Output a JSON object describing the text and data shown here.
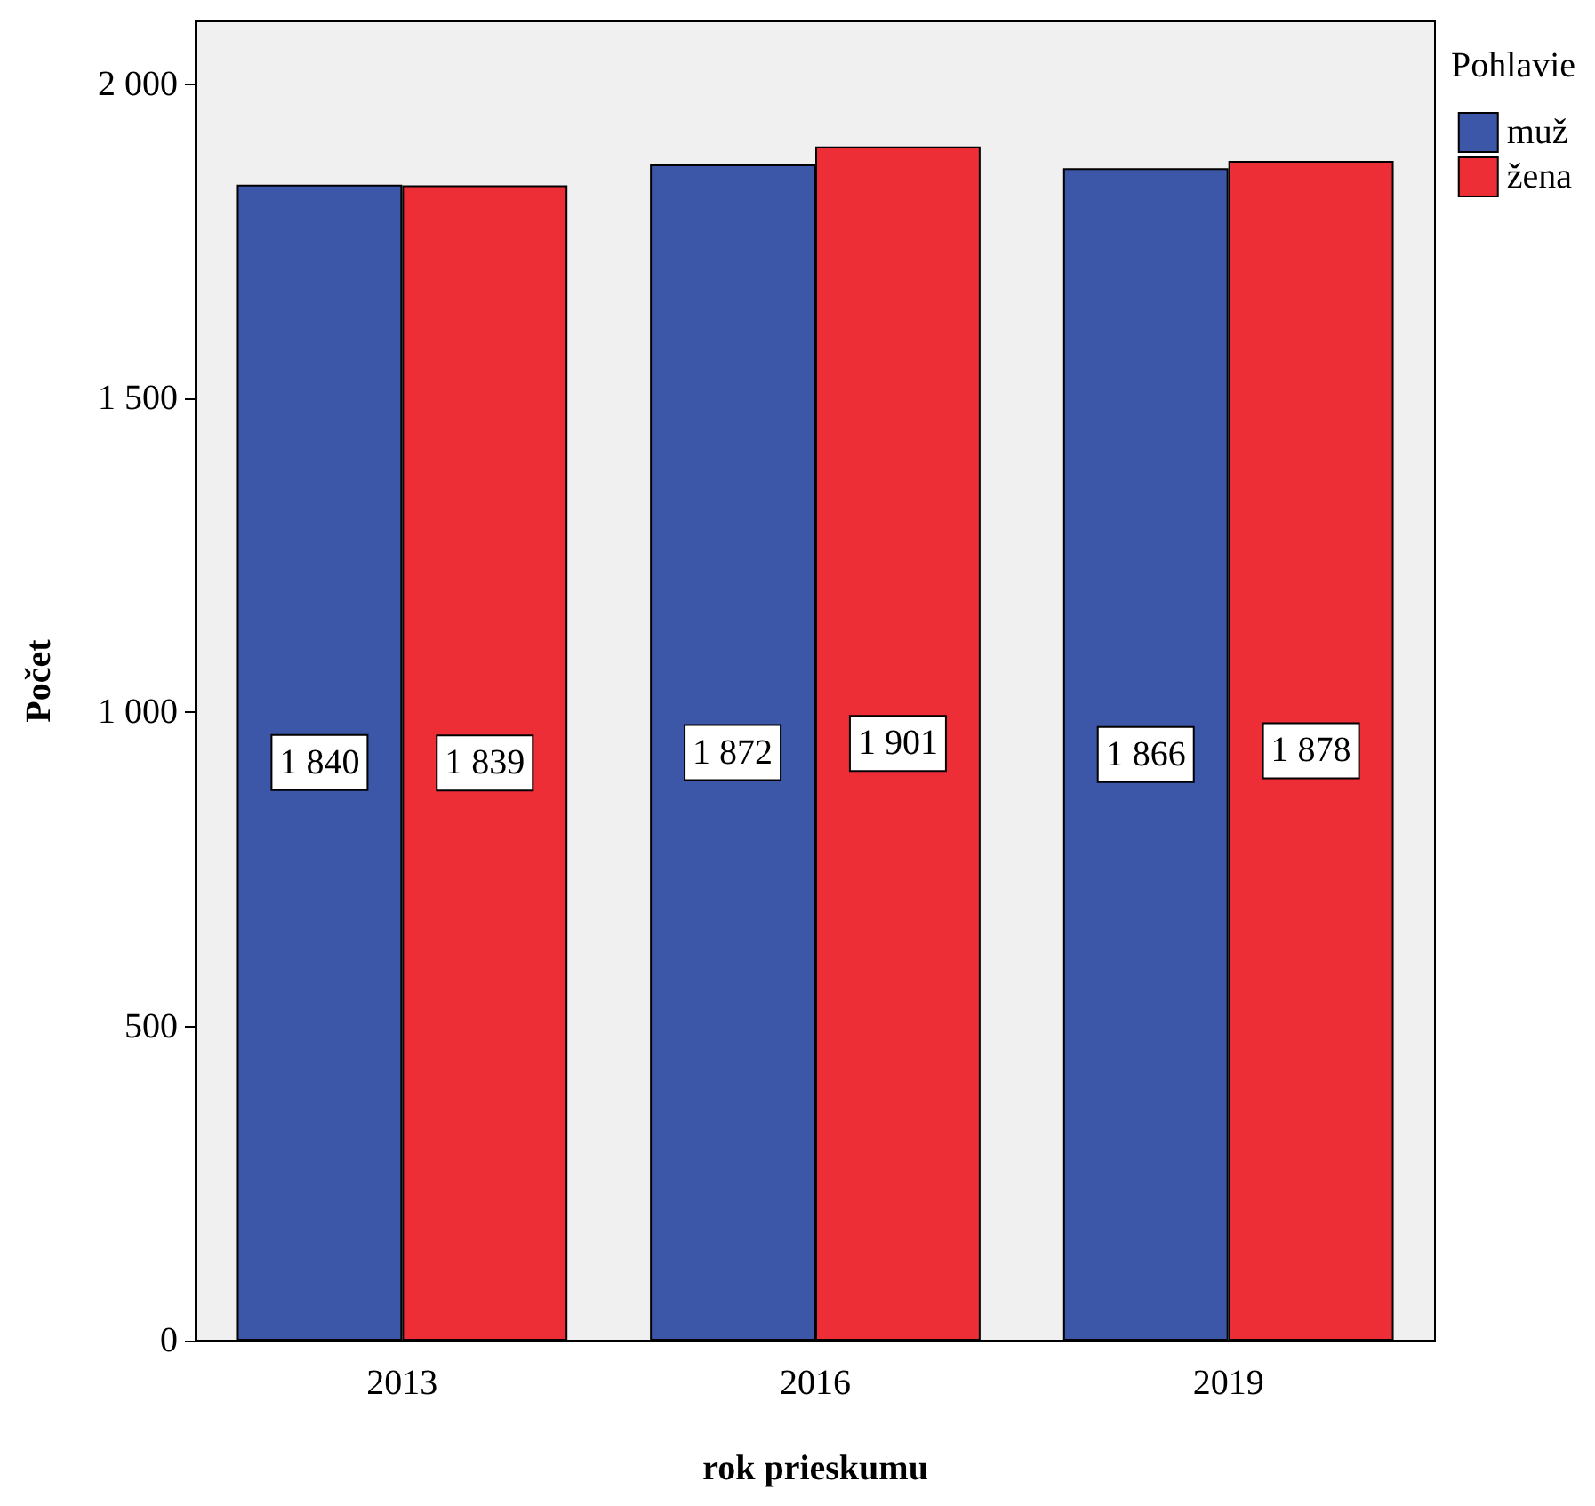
{
  "chart_data": {
    "type": "bar",
    "xlabel": "rok prieskumu",
    "ylabel": "Počet",
    "legend_title": "Pohlavie",
    "categories": [
      "2013",
      "2016",
      "2019"
    ],
    "series": [
      {
        "name": "muž",
        "color": "#3c56a8",
        "values": [
          1840,
          1872,
          1866
        ],
        "value_labels": [
          "1 840",
          "1 872",
          "1 866"
        ]
      },
      {
        "name": "žena",
        "color": "#ee2e36",
        "values": [
          1839,
          1901,
          1878
        ],
        "value_labels": [
          "1 839",
          "1 901",
          "1 878"
        ]
      }
    ],
    "ylim": [
      0,
      2100
    ],
    "yticks": [
      0,
      500,
      {
        "value": 1000,
        "label": "1 000"
      },
      {
        "value": 1500,
        "label": "1 500"
      },
      {
        "value": 2000,
        "label": "2 000"
      }
    ],
    "grid": false,
    "legend": "right"
  }
}
